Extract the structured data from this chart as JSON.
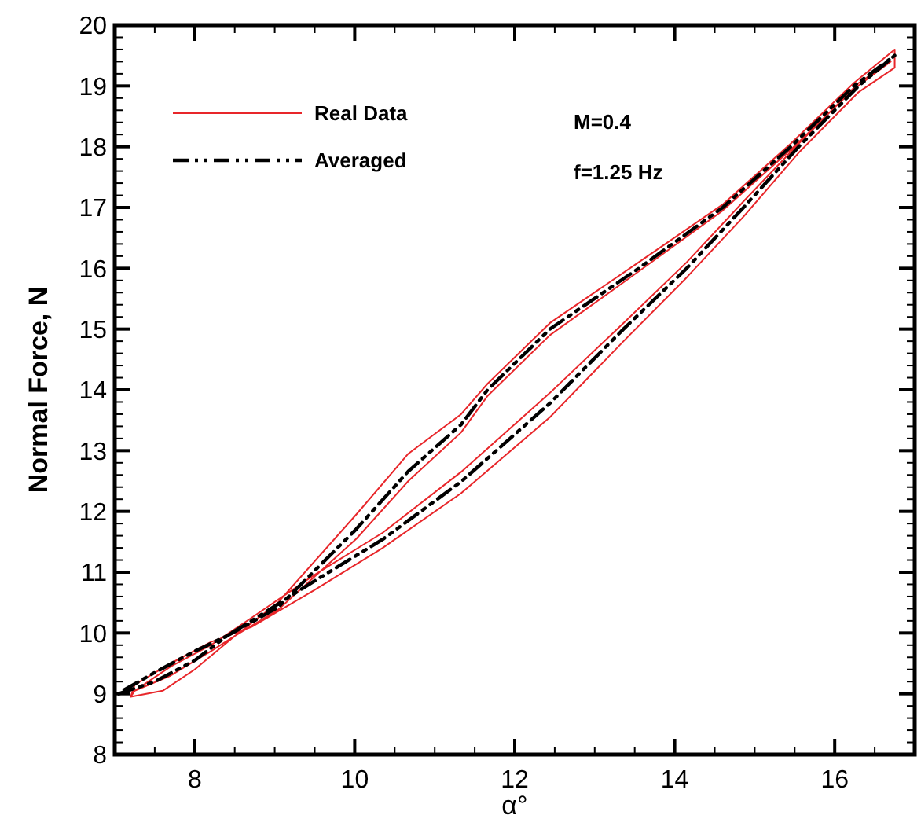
{
  "chart_data": {
    "type": "line",
    "xlabel": "α°",
    "ylabel": "Normal Force, N",
    "xlim": [
      7,
      17
    ],
    "ylim": [
      8,
      20
    ],
    "xticks": [
      {
        "value": 7.5,
        "label": null
      },
      8,
      {
        "value": 8.5,
        "label": null
      },
      {
        "value": 9,
        "label": null
      },
      {
        "value": 9.5,
        "label": null
      },
      10,
      {
        "value": 10.5,
        "label": null
      },
      {
        "value": 11,
        "label": null
      },
      {
        "value": 11.5,
        "label": null
      },
      12,
      {
        "value": 12.5,
        "label": null
      },
      {
        "value": 13,
        "label": null
      },
      {
        "value": 13.5,
        "label": null
      },
      14,
      {
        "value": 14.5,
        "label": null
      },
      {
        "value": 15,
        "label": null
      },
      {
        "value": 15.5,
        "label": null
      },
      16,
      {
        "value": 16.5,
        "label": null
      }
    ],
    "yticks": [
      8,
      {
        "value": 8.2,
        "label": null
      },
      {
        "value": 8.4,
        "label": null
      },
      {
        "value": 8.6,
        "label": null
      },
      {
        "value": 8.8,
        "label": null
      },
      9,
      {
        "value": 9.2,
        "label": null
      },
      {
        "value": 9.4,
        "label": null
      },
      {
        "value": 9.6,
        "label": null
      },
      {
        "value": 9.8,
        "label": null
      },
      10,
      {
        "value": 10.2,
        "label": null
      },
      {
        "value": 10.4,
        "label": null
      },
      {
        "value": 10.6,
        "label": null
      },
      {
        "value": 10.8,
        "label": null
      },
      11,
      {
        "value": 11.2,
        "label": null
      },
      {
        "value": 11.4,
        "label": null
      },
      {
        "value": 11.6,
        "label": null
      },
      {
        "value": 11.8,
        "label": null
      },
      12,
      {
        "value": 12.2,
        "label": null
      },
      {
        "value": 12.4,
        "label": null
      },
      {
        "value": 12.6,
        "label": null
      },
      {
        "value": 12.8,
        "label": null
      },
      13,
      {
        "value": 13.2,
        "label": null
      },
      {
        "value": 13.4,
        "label": null
      },
      {
        "value": 13.6,
        "label": null
      },
      {
        "value": 13.8,
        "label": null
      },
      14,
      {
        "value": 14.2,
        "label": null
      },
      {
        "value": 14.4,
        "label": null
      },
      {
        "value": 14.6,
        "label": null
      },
      {
        "value": 14.8,
        "label": null
      },
      15,
      {
        "value": 15.2,
        "label": null
      },
      {
        "value": 15.4,
        "label": null
      },
      {
        "value": 15.6,
        "label": null
      },
      {
        "value": 15.8,
        "label": null
      },
      16,
      {
        "value": 16.2,
        "label": null
      },
      {
        "value": 16.4,
        "label": null
      },
      {
        "value": 16.6,
        "label": null
      },
      {
        "value": 16.8,
        "label": null
      },
      17,
      {
        "value": 17.2,
        "label": null
      },
      {
        "value": 17.4,
        "label": null
      },
      {
        "value": 17.6,
        "label": null
      },
      {
        "value": 17.8,
        "label": null
      },
      18,
      {
        "value": 18.2,
        "label": null
      },
      {
        "value": 18.4,
        "label": null
      },
      {
        "value": 18.6,
        "label": null
      },
      {
        "value": 18.8,
        "label": null
      },
      19,
      {
        "value": 19.2,
        "label": null
      },
      {
        "value": 19.4,
        "label": null
      },
      {
        "value": 19.6,
        "label": null
      },
      {
        "value": 19.8,
        "label": null
      },
      20
    ],
    "grid": false,
    "legend": "top left",
    "annotations": [
      "M=0.4",
      "f=1.25 Hz"
    ],
    "series": [
      {
        "name": "Real Data",
        "color": "#e8262a",
        "line_style": "solid",
        "x": [
          7.2,
          7.6,
          8.0,
          8.5,
          9.04,
          10.02,
          10.67,
          11.33,
          11.66,
          12.44,
          13.55,
          14.6,
          15.45,
          16.24,
          16.75,
          16.75,
          16.3,
          15.55,
          14.86,
          14.15,
          13.36,
          12.44,
          11.33,
          10.35,
          9.49,
          8.71,
          8.2,
          7.7,
          7.25,
          7.2,
          7.25,
          7.7,
          8.2,
          8.5,
          9.04,
          10.02,
          10.67,
          11.33,
          11.66,
          12.44,
          13.55,
          14.6,
          15.45,
          16.24,
          16.7,
          16.3,
          15.55,
          14.86,
          14.15,
          13.36,
          12.44,
          11.33,
          10.35,
          9.49,
          8.71,
          8.2,
          7.7,
          7.25
        ],
        "values": [
          8.95,
          9.05,
          9.4,
          9.95,
          10.5,
          11.95,
          12.95,
          13.6,
          14.1,
          15.1,
          16.1,
          17.05,
          18.05,
          19.05,
          19.6,
          19.3,
          18.9,
          17.9,
          16.85,
          15.85,
          14.8,
          13.55,
          12.3,
          11.4,
          10.7,
          10.1,
          9.85,
          9.5,
          9.15,
          8.95,
          9.05,
          9.3,
          9.7,
          9.95,
          10.38,
          11.55,
          12.5,
          13.3,
          13.9,
          14.9,
          15.95,
          16.95,
          17.95,
          18.95,
          19.4,
          19.05,
          18.05,
          17.1,
          16.1,
          15.1,
          13.95,
          12.65,
          11.65,
          10.95,
          10.25,
          9.8,
          9.45,
          9.05
        ]
      },
      {
        "name": "Averaged",
        "color": "#000000",
        "line_style": "dashed",
        "x": [
          7.05,
          7.5,
          8.0,
          8.4,
          9.04,
          10.02,
          10.67,
          11.33,
          11.66,
          12.44,
          13.55,
          14.6,
          15.45,
          16.24,
          16.75,
          16.3,
          15.55,
          14.86,
          14.15,
          13.36,
          12.44,
          11.33,
          10.35,
          9.49,
          8.71,
          8.4,
          8.0,
          7.5,
          7.1
        ],
        "values": [
          9.0,
          9.2,
          9.55,
          9.95,
          10.42,
          11.71,
          12.66,
          13.43,
          14.0,
          15.0,
          16.0,
          17.0,
          18.0,
          19.0,
          19.5,
          19.0,
          18.0,
          17.0,
          16.0,
          15.0,
          13.78,
          12.49,
          11.54,
          10.85,
          10.2,
          9.95,
          9.7,
          9.35,
          9.05
        ]
      }
    ]
  }
}
